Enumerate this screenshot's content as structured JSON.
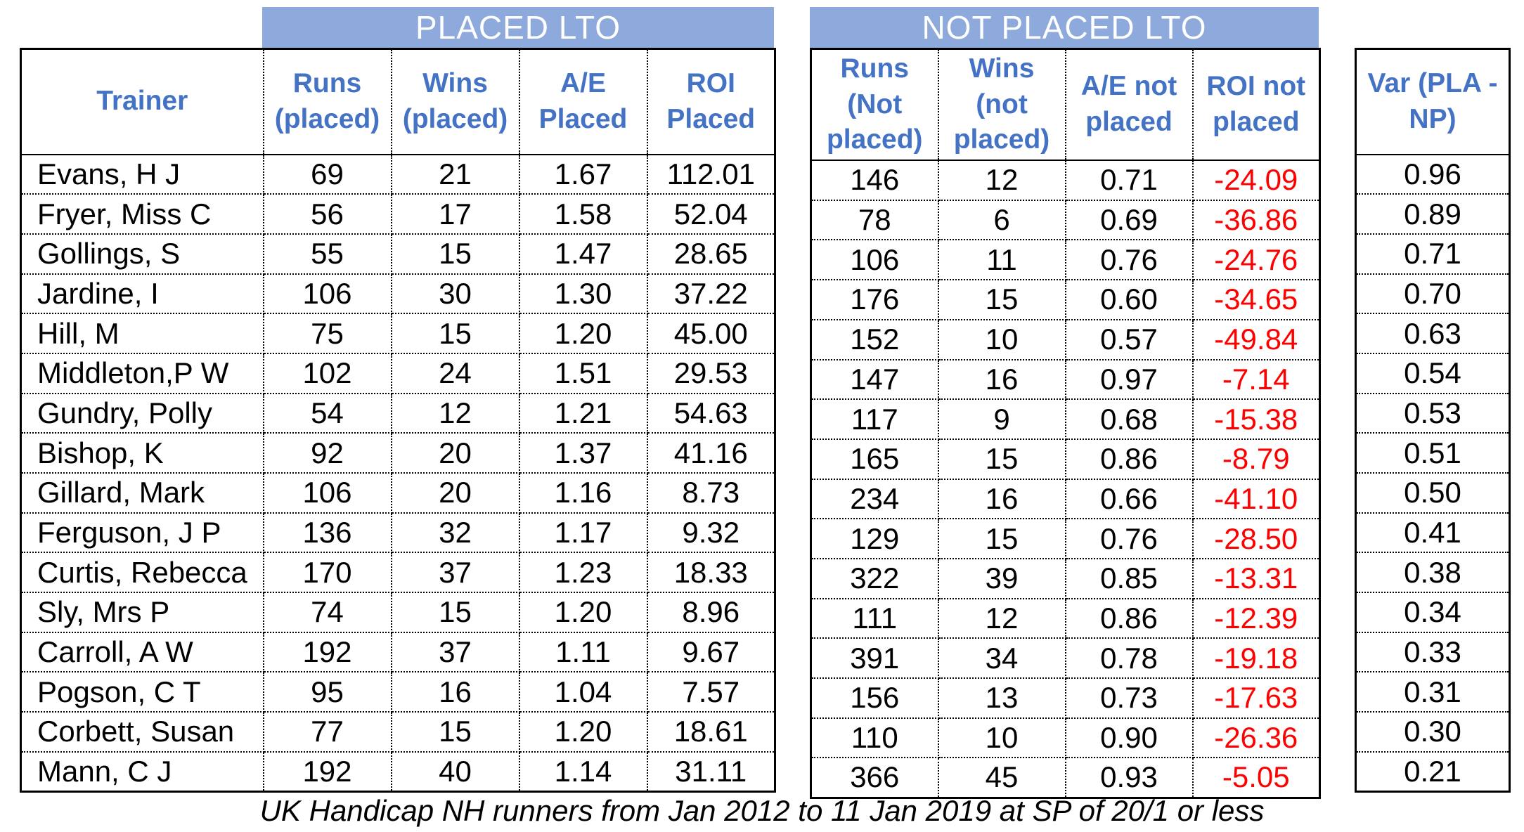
{
  "colors": {
    "banner_bg": "#8ea9db",
    "header_text": "#4472c4",
    "negative": "#ff0000",
    "border": "#000000"
  },
  "chart_data": {
    "type": "table",
    "caption": "UK Handicap NH runners from Jan 2012 to 11 Jan 2019 at SP of 20/1 or less",
    "group_headers": [
      {
        "label": "PLACED LTO",
        "span": [
          "runs_placed",
          "wins_placed",
          "ae_placed",
          "roi_placed"
        ]
      },
      {
        "label": "NOT PLACED LTO",
        "span": [
          "runs_not_placed",
          "wins_not_placed",
          "ae_not_placed",
          "roi_not_placed"
        ]
      }
    ],
    "columns": [
      {
        "key": "trainer",
        "label": "Trainer"
      },
      {
        "key": "runs_placed",
        "label": "Runs (placed)"
      },
      {
        "key": "wins_placed",
        "label": "Wins (placed)"
      },
      {
        "key": "ae_placed",
        "label": "A/E Placed"
      },
      {
        "key": "roi_placed",
        "label": "ROI Placed"
      },
      {
        "key": "runs_not_placed",
        "label": "Runs (Not placed)"
      },
      {
        "key": "wins_not_placed",
        "label": "Wins (not placed)"
      },
      {
        "key": "ae_not_placed",
        "label": "A/E not placed"
      },
      {
        "key": "roi_not_placed",
        "label": "ROI not placed"
      },
      {
        "key": "var",
        "label": "Var (PLA - NP)"
      }
    ],
    "rows": [
      {
        "trainer": "Evans, H J",
        "runs_placed": "69",
        "wins_placed": "21",
        "ae_placed": "1.67",
        "roi_placed": "112.01",
        "runs_not_placed": "146",
        "wins_not_placed": "12",
        "ae_not_placed": "0.71",
        "roi_not_placed": "-24.09",
        "var": "0.96"
      },
      {
        "trainer": "Fryer, Miss C",
        "runs_placed": "56",
        "wins_placed": "17",
        "ae_placed": "1.58",
        "roi_placed": "52.04",
        "runs_not_placed": "78",
        "wins_not_placed": "6",
        "ae_not_placed": "0.69",
        "roi_not_placed": "-36.86",
        "var": "0.89"
      },
      {
        "trainer": "Gollings, S",
        "runs_placed": "55",
        "wins_placed": "15",
        "ae_placed": "1.47",
        "roi_placed": "28.65",
        "runs_not_placed": "106",
        "wins_not_placed": "11",
        "ae_not_placed": "0.76",
        "roi_not_placed": "-24.76",
        "var": "0.71"
      },
      {
        "trainer": "Jardine, I",
        "runs_placed": "106",
        "wins_placed": "30",
        "ae_placed": "1.30",
        "roi_placed": "37.22",
        "runs_not_placed": "176",
        "wins_not_placed": "15",
        "ae_not_placed": "0.60",
        "roi_not_placed": "-34.65",
        "var": "0.70"
      },
      {
        "trainer": "Hill, M",
        "runs_placed": "75",
        "wins_placed": "15",
        "ae_placed": "1.20",
        "roi_placed": "45.00",
        "runs_not_placed": "152",
        "wins_not_placed": "10",
        "ae_not_placed": "0.57",
        "roi_not_placed": "-49.84",
        "var": "0.63"
      },
      {
        "trainer": "Middleton,P W",
        "runs_placed": "102",
        "wins_placed": "24",
        "ae_placed": "1.51",
        "roi_placed": "29.53",
        "runs_not_placed": "147",
        "wins_not_placed": "16",
        "ae_not_placed": "0.97",
        "roi_not_placed": "-7.14",
        "var": "0.54"
      },
      {
        "trainer": "Gundry, Polly",
        "runs_placed": "54",
        "wins_placed": "12",
        "ae_placed": "1.21",
        "roi_placed": "54.63",
        "runs_not_placed": "117",
        "wins_not_placed": "9",
        "ae_not_placed": "0.68",
        "roi_not_placed": "-15.38",
        "var": "0.53"
      },
      {
        "trainer": "Bishop, K",
        "runs_placed": "92",
        "wins_placed": "20",
        "ae_placed": "1.37",
        "roi_placed": "41.16",
        "runs_not_placed": "165",
        "wins_not_placed": "15",
        "ae_not_placed": "0.86",
        "roi_not_placed": "-8.79",
        "var": "0.51"
      },
      {
        "trainer": "Gillard, Mark",
        "runs_placed": "106",
        "wins_placed": "20",
        "ae_placed": "1.16",
        "roi_placed": "8.73",
        "runs_not_placed": "234",
        "wins_not_placed": "16",
        "ae_not_placed": "0.66",
        "roi_not_placed": "-41.10",
        "var": "0.50"
      },
      {
        "trainer": "Ferguson, J P",
        "runs_placed": "136",
        "wins_placed": "32",
        "ae_placed": "1.17",
        "roi_placed": "9.32",
        "runs_not_placed": "129",
        "wins_not_placed": "15",
        "ae_not_placed": "0.76",
        "roi_not_placed": "-28.50",
        "var": "0.41"
      },
      {
        "trainer": "Curtis, Rebecca",
        "runs_placed": "170",
        "wins_placed": "37",
        "ae_placed": "1.23",
        "roi_placed": "18.33",
        "runs_not_placed": "322",
        "wins_not_placed": "39",
        "ae_not_placed": "0.85",
        "roi_not_placed": "-13.31",
        "var": "0.38"
      },
      {
        "trainer": "Sly, Mrs P",
        "runs_placed": "74",
        "wins_placed": "15",
        "ae_placed": "1.20",
        "roi_placed": "8.96",
        "runs_not_placed": "111",
        "wins_not_placed": "12",
        "ae_not_placed": "0.86",
        "roi_not_placed": "-12.39",
        "var": "0.34"
      },
      {
        "trainer": "Carroll, A W",
        "runs_placed": "192",
        "wins_placed": "37",
        "ae_placed": "1.11",
        "roi_placed": "9.67",
        "runs_not_placed": "391",
        "wins_not_placed": "34",
        "ae_not_placed": "0.78",
        "roi_not_placed": "-19.18",
        "var": "0.33"
      },
      {
        "trainer": "Pogson, C T",
        "runs_placed": "95",
        "wins_placed": "16",
        "ae_placed": "1.04",
        "roi_placed": "7.57",
        "runs_not_placed": "156",
        "wins_not_placed": "13",
        "ae_not_placed": "0.73",
        "roi_not_placed": "-17.63",
        "var": "0.31"
      },
      {
        "trainer": "Corbett, Susan",
        "runs_placed": "77",
        "wins_placed": "15",
        "ae_placed": "1.20",
        "roi_placed": "18.61",
        "runs_not_placed": "110",
        "wins_not_placed": "10",
        "ae_not_placed": "0.90",
        "roi_not_placed": "-26.36",
        "var": "0.30"
      },
      {
        "trainer": "Mann, C J",
        "runs_placed": "192",
        "wins_placed": "40",
        "ae_placed": "1.14",
        "roi_placed": "31.11",
        "runs_not_placed": "366",
        "wins_not_placed": "45",
        "ae_not_placed": "0.93",
        "roi_not_placed": "-5.05",
        "var": "0.21"
      }
    ]
  }
}
